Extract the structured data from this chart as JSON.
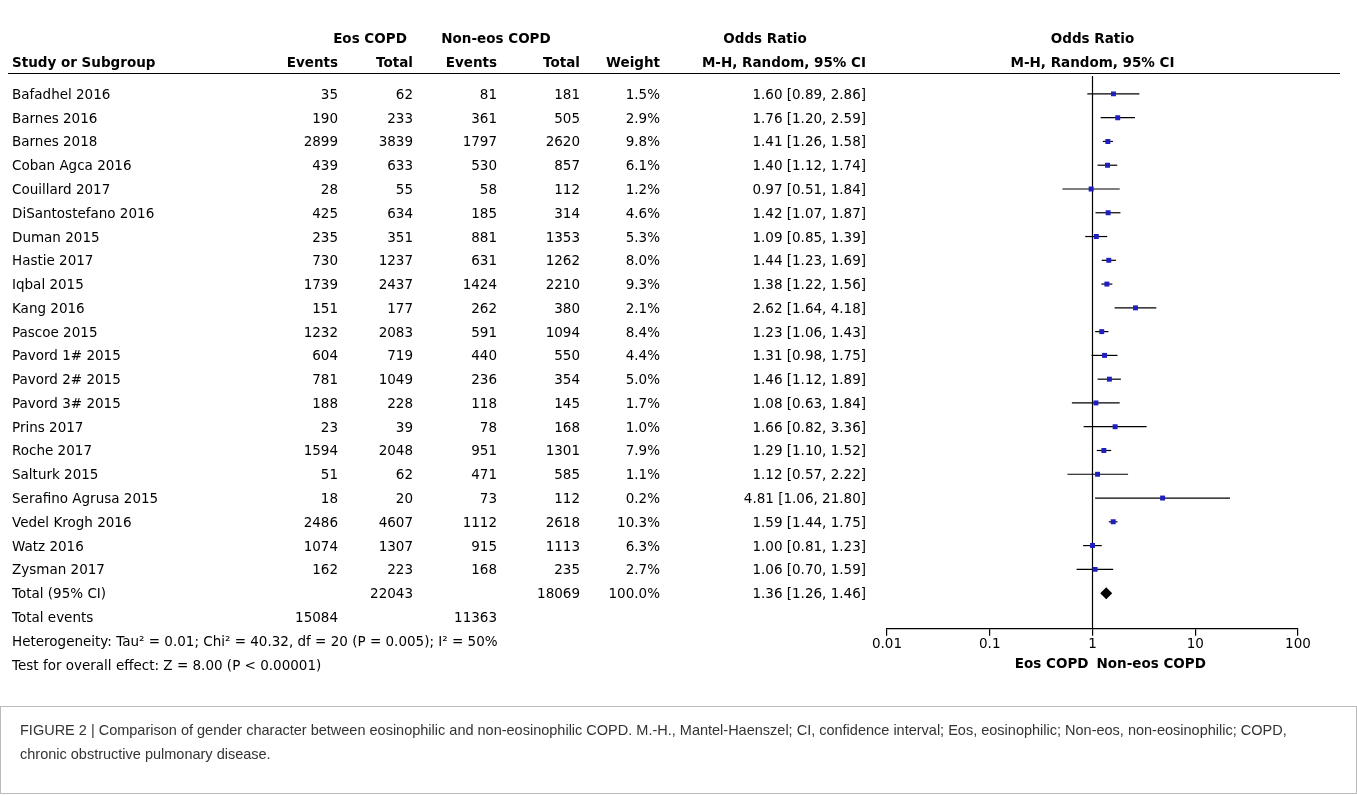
{
  "chart_data": [
    {
      "type": "other",
      "ylabel": "Study or Subgroup",
      "data_labels": true,
      "categories": [
        "Bafadhel 2016",
        "Barnes 2016",
        "Barnes 2018",
        "Coban Agca 2016",
        "Couillard 2017",
        "DiSantostefano 2016",
        "Duman 2015",
        "Hastie 2017",
        "Iqbal 2015",
        "Kang 2016",
        "Pascoe 2015",
        "Pavord 1# 2015",
        "Pavord 2# 2015",
        "Pavord 3# 2015",
        "Prins 2017",
        "Roche 2017",
        "Salturk 2015",
        "Serafino Agrusa 2015",
        "Vedel Krogh 2016",
        "Watz 2016",
        "Zysman 2017",
        "Total (95% CI)",
        "Total events"
      ],
      "series": [
        {
          "name": "Events",
          "values": [
            35,
            190,
            2899,
            439,
            28,
            425,
            235,
            730,
            1739,
            151,
            1232,
            604,
            781,
            188,
            23,
            1594,
            51,
            18,
            2486,
            1074,
            162,
            null,
            15084
          ]
        },
        {
          "name": "Total",
          "values": [
            62,
            233,
            3839,
            633,
            55,
            634,
            351,
            1237,
            2437,
            177,
            2083,
            719,
            1049,
            228,
            39,
            2048,
            62,
            20,
            4607,
            1307,
            223,
            22043,
            null
          ]
        },
        {
          "name": "Events",
          "values": [
            81,
            361,
            1797,
            530,
            58,
            185,
            881,
            631,
            1424,
            262,
            591,
            440,
            236,
            118,
            78,
            951,
            471,
            73,
            1112,
            915,
            168,
            null,
            11363
          ]
        },
        {
          "name": "Total",
          "values": [
            181,
            505,
            2620,
            857,
            112,
            314,
            1353,
            1262,
            2210,
            380,
            1094,
            550,
            354,
            145,
            168,
            1301,
            585,
            112,
            2618,
            1113,
            235,
            18069,
            null
          ]
        },
        {
          "name": "Weight",
          "values": [
            1.5,
            2.9,
            9.8,
            6.1,
            1.2,
            4.6,
            5.3,
            8.0,
            9.3,
            2.1,
            8.4,
            4.4,
            5.0,
            1.7,
            1.0,
            7.9,
            1.1,
            0.2,
            10.3,
            6.3,
            2.7,
            100.0,
            null
          ],
          "value_labels": [
            "1.5%",
            "2.9%",
            "9.8%",
            "6.1%",
            "1.2%",
            "4.6%",
            "5.3%",
            "8.0%",
            "9.3%",
            "2.1%",
            "8.4%",
            "4.4%",
            "5.0%",
            "1.7%",
            "1.0%",
            "7.9%",
            "1.1%",
            "0.2%",
            "10.3%",
            "6.3%",
            "2.7%",
            "100.0%",
            null
          ]
        },
        {
          "name": "M-H, Random, 95% CI",
          "values": [
            1.6,
            1.76,
            1.41,
            1.4,
            0.97,
            1.42,
            1.09,
            1.44,
            1.38,
            2.62,
            1.23,
            1.31,
            1.46,
            1.08,
            1.66,
            1.29,
            1.12,
            4.81,
            1.59,
            1.0,
            1.06,
            1.36,
            null
          ],
          "value_labels": [
            "1.60 [0.89, 2.86]",
            "1.76 [1.20, 2.59]",
            "1.41 [1.26, 1.58]",
            "1.40 [1.12, 1.74]",
            "0.97 [0.51, 1.84]",
            "1.42 [1.07, 1.87]",
            "1.09 [0.85, 1.39]",
            "1.44 [1.23, 1.69]",
            "1.38 [1.22, 1.56]",
            "2.62 [1.64, 4.18]",
            "1.23 [1.06, 1.43]",
            "1.31 [0.98, 1.75]",
            "1.46 [1.12, 1.89]",
            "1.08 [0.63, 1.84]",
            "1.66 [0.82, 3.36]",
            "1.29 [1.10, 1.52]",
            "1.12 [0.57, 2.22]",
            "4.81 [1.06, 21.80]",
            "1.59 [1.44, 1.75]",
            "1.00 [0.81, 1.23]",
            "1.06 [0.70, 1.59]",
            "1.36 [1.26, 1.46]",
            null
          ]
        }
      ],
      "annotations": [
        "Eos COPD",
        "Non-eos COPD",
        "Odds Ratio",
        "Heterogeneity: Tau² = 0.01; Chi² = 40.32, df = 20 (P = 0.005); I² = 50%",
        "Test for overall effect: Z = 8.00 (P < 0.00001)",
        "FIGURE 2 | Comparison of gender character between eosinophilic and non-eosinophilic COPD. M.-H., Mantel-Haenszel; CI, confidence interval; Eos, eosinophilic; Non-eos, non-eosinophilic; COPD, chronic obstructive pulmonary disease."
      ]
    },
    {
      "type": "scatter",
      "title": "Odds Ratio",
      "subtitle": "M-H, Random, 95% CI",
      "orientation": "horizontal",
      "log": "x",
      "categories": [
        null,
        null,
        null,
        null,
        null,
        null,
        null,
        null,
        null,
        null,
        null,
        null,
        null,
        null,
        null,
        null,
        null,
        null,
        null,
        null,
        null,
        null,
        null
      ],
      "xlim": [
        0.01,
        100
      ],
      "xticks": [
        0.01,
        0.1,
        1,
        10,
        100
      ],
      "ref_lines": [
        {
          "axis": "x",
          "value": 1,
          "color": "#000000"
        }
      ],
      "series": [
        {
          "color": "#1f1fbf",
          "marker": "square",
          "values": [
            1.6,
            1.76,
            1.41,
            1.4,
            0.97,
            1.42,
            1.09,
            1.44,
            1.38,
            2.62,
            1.23,
            1.31,
            1.46,
            1.08,
            1.66,
            1.29,
            1.12,
            4.81,
            1.59,
            1.0,
            1.06,
            null,
            null
          ],
          "errors": [
            [
              0.89,
              2.86
            ],
            [
              1.2,
              2.59
            ],
            [
              1.26,
              1.58
            ],
            [
              1.12,
              1.74
            ],
            [
              0.51,
              1.84
            ],
            [
              1.07,
              1.87
            ],
            [
              0.85,
              1.39
            ],
            [
              1.23,
              1.69
            ],
            [
              1.22,
              1.56
            ],
            [
              1.64,
              4.18
            ],
            [
              1.06,
              1.43
            ],
            [
              0.98,
              1.75
            ],
            [
              1.12,
              1.89
            ],
            [
              0.63,
              1.84
            ],
            [
              0.82,
              3.36
            ],
            [
              1.1,
              1.52
            ],
            [
              0.57,
              2.22
            ],
            [
              1.06,
              21.8
            ],
            [
              1.44,
              1.75
            ],
            [
              0.81,
              1.23
            ],
            [
              0.7,
              1.59
            ],
            null,
            null
          ]
        },
        {
          "color": "#000000",
          "marker": "diamond",
          "values": [
            null,
            null,
            null,
            null,
            null,
            null,
            null,
            null,
            null,
            null,
            null,
            null,
            null,
            null,
            null,
            null,
            null,
            null,
            null,
            null,
            null,
            1.36,
            null
          ],
          "errors": [
            null,
            null,
            null,
            null,
            null,
            null,
            null,
            null,
            null,
            null,
            null,
            null,
            null,
            null,
            null,
            null,
            null,
            null,
            null,
            null,
            null,
            [
              1.26,
              1.46
            ],
            null
          ]
        }
      ],
      "annotations": [
        "Eos COPD",
        "Non-eos COPD"
      ]
    }
  ]
}
